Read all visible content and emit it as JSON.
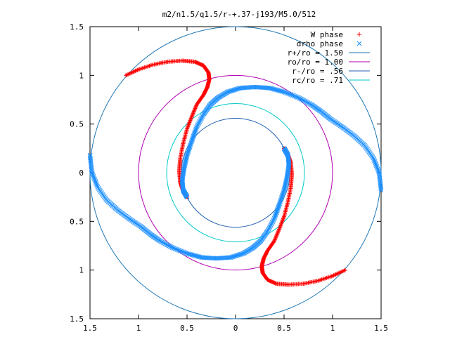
{
  "chart_data": {
    "type": "scatter",
    "title": "m2/n1.5/q1.5/r-+.37-j193/M5.0/512",
    "xlabel": "",
    "ylabel": "",
    "xlim": [
      -1.5,
      1.5
    ],
    "ylim": [
      -1.5,
      1.5
    ],
    "x_tick_values": [
      -1.5,
      -1,
      -0.5,
      0,
      0.5,
      1,
      1.5
    ],
    "x_tick_labels": [
      "1.5",
      "1",
      "0.5",
      "0",
      "0.5",
      "1",
      "1.5"
    ],
    "y_tick_values": [
      1.5,
      1,
      0.5,
      0,
      -0.5,
      -1,
      -1.5
    ],
    "y_tick_labels": [
      "1.5",
      "1",
      "0.5",
      "0",
      "0.5",
      "1",
      "1.5"
    ],
    "grid": false,
    "legend_position": "top-right",
    "circles": [
      {
        "name": "r+/ro = 1.50",
        "radius": 1.5,
        "color": "#1f78b4"
      },
      {
        "name": "ro/ro = 1.00",
        "radius": 1.0,
        "color": "#b000b0"
      },
      {
        "name": "r-/ro = .56",
        "radius": 0.56,
        "color": "#1f5fb4"
      },
      {
        "name": "rc/ro = .71",
        "radius": 0.71,
        "color": "#00c8c8"
      }
    ],
    "series": [
      {
        "name": "W phase",
        "marker": "+",
        "color": "#ff0000",
        "arms": [
          [
            [
              -1.13,
              1.0
            ],
            [
              -1.0,
              1.06
            ],
            [
              -0.85,
              1.11
            ],
            [
              -0.7,
              1.14
            ],
            [
              -0.55,
              1.15
            ],
            [
              -0.42,
              1.14
            ],
            [
              -0.33,
              1.1
            ],
            [
              -0.28,
              1.03
            ],
            [
              -0.27,
              0.96
            ],
            [
              -0.29,
              0.88
            ],
            [
              -0.33,
              0.8
            ],
            [
              -0.4,
              0.7
            ],
            [
              -0.45,
              0.58
            ],
            [
              -0.5,
              0.45
            ],
            [
              -0.54,
              0.3
            ],
            [
              -0.57,
              0.15
            ],
            [
              -0.58,
              0.02
            ],
            [
              -0.57,
              -0.1
            ],
            [
              -0.54,
              -0.19
            ],
            [
              -0.5,
              -0.25
            ]
          ],
          [
            [
              1.13,
              -1.0
            ],
            [
              1.0,
              -1.06
            ],
            [
              0.85,
              -1.11
            ],
            [
              0.7,
              -1.14
            ],
            [
              0.55,
              -1.15
            ],
            [
              0.42,
              -1.14
            ],
            [
              0.33,
              -1.1
            ],
            [
              0.28,
              -1.03
            ],
            [
              0.27,
              -0.96
            ],
            [
              0.29,
              -0.88
            ],
            [
              0.33,
              -0.8
            ],
            [
              0.4,
              -0.7
            ],
            [
              0.45,
              -0.58
            ],
            [
              0.5,
              -0.45
            ],
            [
              0.54,
              -0.3
            ],
            [
              0.57,
              -0.15
            ],
            [
              0.58,
              -0.02
            ],
            [
              0.57,
              0.1
            ],
            [
              0.54,
              0.19
            ],
            [
              0.5,
              0.25
            ]
          ]
        ]
      },
      {
        "name": "drho phase",
        "marker": "x",
        "color": "#1e90ff",
        "arms": [
          [
            [
              -1.5,
              0.18
            ],
            [
              -1.48,
              0.0
            ],
            [
              -1.42,
              -0.15
            ],
            [
              -1.33,
              -0.28
            ],
            [
              -1.22,
              -0.38
            ],
            [
              -1.1,
              -0.47
            ],
            [
              -0.98,
              -0.55
            ],
            [
              -0.88,
              -0.63
            ],
            [
              -0.78,
              -0.7
            ],
            [
              -0.65,
              -0.77
            ],
            [
              -0.5,
              -0.83
            ],
            [
              -0.35,
              -0.87
            ],
            [
              -0.2,
              -0.88
            ],
            [
              -0.05,
              -0.87
            ],
            [
              0.08,
              -0.83
            ],
            [
              0.18,
              -0.77
            ],
            [
              0.26,
              -0.7
            ],
            [
              0.33,
              -0.6
            ],
            [
              0.4,
              -0.47
            ],
            [
              0.45,
              -0.33
            ],
            [
              0.5,
              -0.18
            ],
            [
              0.53,
              -0.05
            ],
            [
              0.55,
              0.08
            ],
            [
              0.54,
              0.18
            ],
            [
              0.5,
              0.25
            ]
          ],
          [
            [
              1.5,
              -0.18
            ],
            [
              1.48,
              0.0
            ],
            [
              1.42,
              0.15
            ],
            [
              1.33,
              0.28
            ],
            [
              1.22,
              0.38
            ],
            [
              1.1,
              0.47
            ],
            [
              0.98,
              0.55
            ],
            [
              0.88,
              0.63
            ],
            [
              0.78,
              0.7
            ],
            [
              0.65,
              0.77
            ],
            [
              0.5,
              0.83
            ],
            [
              0.35,
              0.87
            ],
            [
              0.2,
              0.88
            ],
            [
              0.05,
              0.87
            ],
            [
              -0.08,
              0.83
            ],
            [
              -0.18,
              0.77
            ],
            [
              -0.26,
              0.7
            ],
            [
              -0.33,
              0.6
            ],
            [
              -0.4,
              0.47
            ],
            [
              -0.45,
              0.33
            ],
            [
              -0.5,
              0.18
            ],
            [
              -0.53,
              0.05
            ],
            [
              -0.55,
              -0.08
            ],
            [
              -0.54,
              -0.18
            ],
            [
              -0.5,
              -0.25
            ]
          ]
        ]
      }
    ]
  }
}
